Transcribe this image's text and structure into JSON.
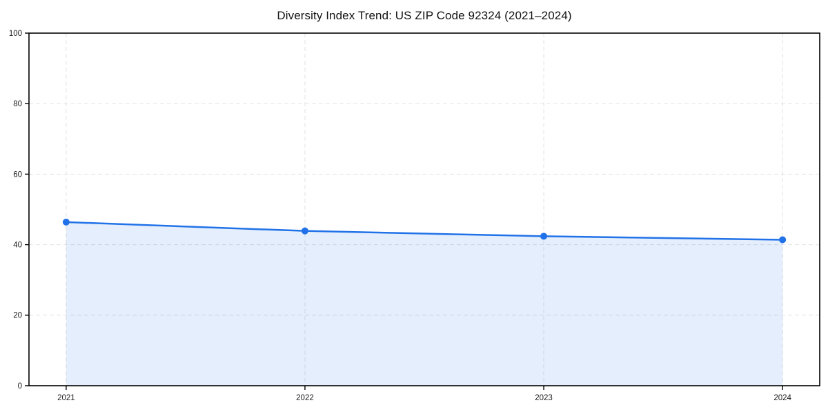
{
  "chart_data": {
    "type": "area",
    "title": "Diversity Index Trend: US ZIP Code 92324 (2021–2024)",
    "xlabel": "",
    "ylabel": "",
    "categories": [
      "2021",
      "2022",
      "2023",
      "2024"
    ],
    "series": [
      {
        "name": "Diversity Index",
        "values": [
          46.4,
          43.9,
          42.4,
          41.4
        ]
      }
    ],
    "ylim": [
      0,
      100
    ],
    "yticks": [
      0,
      20,
      40,
      60,
      80,
      100
    ],
    "grid": true,
    "grid_style": "dashed",
    "legend": "none",
    "marker": "circle",
    "colors": {
      "line": "#2172e8",
      "marker": "#2172e8",
      "fill_opacity": 0.12,
      "grid": "#e2e2e2",
      "axis": "#000000",
      "text": "#1a1a1a",
      "background": "#ffffff"
    }
  }
}
